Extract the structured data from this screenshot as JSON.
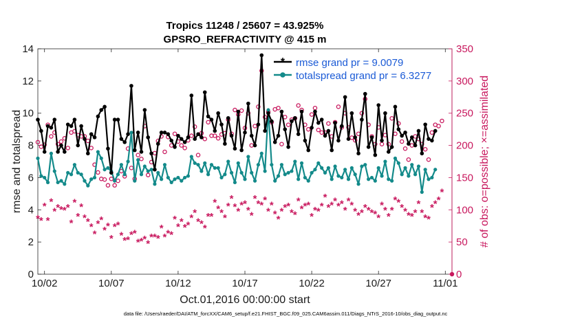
{
  "chart_data": {
    "type": "line",
    "title_line1": "Tropics 11248 / 25607 = 43.925%",
    "title_line2": "GPSRO_REFRACTIVITY @ 415 m",
    "xlabel": "Oct.01,2016 00:00:00 start",
    "ylabel_left": "rmse and totalspread",
    "ylabel_right": "# of obs: o=possible; ×=assimilated",
    "footer": "data file: /Users/raeder/DAI/ATM_forcXX/CAM6_setup/f.e21.FHIST_BGC.f09_025.CAM6assim.011/Diags_NTrS_2016-10/obs_diag_output.nc",
    "x_range_days": [
      0.5,
      31.5
    ],
    "x_tick_positions": [
      1,
      6,
      11,
      16,
      21,
      26,
      31
    ],
    "x_tick_labels": [
      "10/02",
      "10/07",
      "10/12",
      "10/17",
      "10/22",
      "10/27",
      "11/01"
    ],
    "ylim_left": [
      0,
      14
    ],
    "left_ticks": [
      "0",
      "2",
      "4",
      "6",
      "8",
      "10",
      "12",
      "14"
    ],
    "ylim_right": [
      0,
      350
    ],
    "right_ticks": [
      "0",
      "50",
      "100",
      "150",
      "200",
      "250",
      "300",
      "350"
    ],
    "colors": {
      "rmse": "#000000",
      "spread": "#138a8a",
      "obs": "#c8175d",
      "legend_text": "#1a5ad6"
    },
    "series": [
      {
        "name": "rmse grand pr = 9.0079",
        "axis": "left",
        "step_days": 0.25,
        "start_day": 0.5,
        "values": [
          9.6,
          8.9,
          7.6,
          9.2,
          9.1,
          9.6,
          7.6,
          8.0,
          7.6,
          9.3,
          9.2,
          9.6,
          8.0,
          9.2,
          8.4,
          7.5,
          8.7,
          8.5,
          9.8,
          10.2,
          10.4,
          7.8,
          6.3,
          9.6,
          9.6,
          8.4,
          8.2,
          8.7,
          11.7,
          7.7,
          8.8,
          7.6,
          10.2,
          8.5,
          7.5,
          6.5,
          8.1,
          8.8,
          8.8,
          8.7,
          8.3,
          7.9,
          8.6,
          8.4,
          8.2,
          8.5,
          11.1,
          8.4,
          8.7,
          8.5,
          11.3,
          9.8,
          9.6,
          8.9,
          10.0,
          9.3,
          8.1,
          9.7,
          8.6,
          7.8,
          10.1,
          7.7,
          8.8,
          10.6,
          8.6,
          8.0,
          9.3,
          13.6,
          8.9,
          10.0,
          9.5,
          8.2,
          8.6,
          10.1,
          9.0,
          7.9,
          9.5,
          9.7,
          8.7,
          10.1,
          8.3,
          7.7,
          9.1,
          10.1,
          9.4,
          9.6,
          8.6,
          8.9,
          7.7,
          9.4,
          8.3,
          9.2,
          11.0,
          8.4,
          10.0,
          8.5,
          7.5,
          9.6,
          11.2,
          7.9,
          8.5,
          7.4,
          10.5,
          8.3,
          10.0,
          7.6,
          7.9,
          10.4,
          9.0,
          8.6,
          8.8,
          8.1,
          8.5,
          8.0,
          8.9,
          7.5,
          9.3,
          8.4,
          8.3,
          8.9
        ]
      },
      {
        "name": "totalspread grand pr = 6.3277",
        "axis": "left",
        "step_days": 0.25,
        "start_day": 0.5,
        "values": [
          7.2,
          6.1,
          6.0,
          5.7,
          7.5,
          6.4,
          5.7,
          5.8,
          5.6,
          6.3,
          6.2,
          6.8,
          6.3,
          6.2,
          5.8,
          5.5,
          5.9,
          6.0,
          7.6,
          7.2,
          6.5,
          6.6,
          6.4,
          5.8,
          6.2,
          6.8,
          6.2,
          7.0,
          8.8,
          5.8,
          7.1,
          6.2,
          6.7,
          6.4,
          6.5,
          5.6,
          6.3,
          5.9,
          6.8,
          6.0,
          5.7,
          5.9,
          6.0,
          5.8,
          6.0,
          6.1,
          7.3,
          6.9,
          6.8,
          6.4,
          6.9,
          6.2,
          6.8,
          6.6,
          6.6,
          6.0,
          6.2,
          7.0,
          6.3,
          5.7,
          6.9,
          6.3,
          5.9,
          7.3,
          6.3,
          5.8,
          6.8,
          7.5,
          6.4,
          10.2,
          6.8,
          5.8,
          6.1,
          6.8,
          6.2,
          6.3,
          6.4,
          7.0,
          5.9,
          6.9,
          6.0,
          5.8,
          6.3,
          6.5,
          6.9,
          6.6,
          6.3,
          6.6,
          5.9,
          6.7,
          6.1,
          6.0,
          6.5,
          5.9,
          6.6,
          6.2,
          5.6,
          6.7,
          6.8,
          5.9,
          6.0,
          5.8,
          6.6,
          6.1,
          7.0,
          5.9,
          5.8,
          7.2,
          6.9,
          6.2,
          6.6,
          6.1,
          6.8,
          6.2,
          6.7,
          5.1,
          6.5,
          5.9,
          6.0,
          6.5
        ]
      },
      {
        "name": "possible",
        "axis": "right",
        "step_days": 0.25,
        "start_day": 0.5,
        "values": [
          205,
          198,
          201,
          232,
          214,
          220,
          202,
          206,
          211,
          196,
          220,
          222,
          216,
          214,
          214,
          207,
          196,
          170,
          158,
          148,
          147,
          138,
          148,
          138,
          145,
          160,
          152,
          195,
          165,
          148,
          185,
          179,
          230,
          154,
          174,
          188,
          207,
          214,
          190,
          213,
          200,
          218,
          206,
          200,
          196,
          208,
          215,
          229,
          185,
          219,
          210,
          236,
          215,
          215,
          211,
          217,
          219,
          240,
          218,
          255,
          248,
          254,
          227,
          250,
          200,
          230,
          260,
          316,
          244,
          252,
          236,
          256,
          258,
          202,
          244,
          232,
          240,
          242,
          262,
          255,
          232,
          225,
          248,
          258,
          224,
          220,
          220,
          234,
          214,
          236,
          260,
          228,
          250,
          228,
          212,
          208,
          218,
          250,
          272,
          232,
          214,
          202,
          228,
          202,
          216,
          202,
          242,
          218,
          234,
          206,
          195,
          178,
          200,
          214,
          210,
          202,
          194,
          178,
          220,
          232,
          230,
          238
        ]
      },
      {
        "name": "assimilated",
        "axis": "right",
        "step_days": 0.25,
        "start_day": 0.5,
        "values": [
          87,
          84,
          106,
          84,
          113,
          98,
          104,
          101,
          100,
          104,
          80,
          112,
          90,
          105,
          88,
          82,
          74,
          63,
          79,
          85,
          69,
          75,
          56,
          74,
          77,
          61,
          53,
          54,
          62,
          64,
          50,
          52,
          55,
          48,
          58,
          58,
          56,
          72,
          58,
          64,
          62,
          86,
          74,
          82,
          73,
          77,
          88,
          96,
          82,
          79,
          72,
          90,
          90,
          112,
          102,
          96,
          88,
          106,
          118,
          105,
          98,
          108,
          110,
          100,
          92,
          118,
          110,
          108,
          116,
          98,
          108,
          94,
          86,
          98,
          104,
          106,
          96,
          93,
          114,
          102,
          106,
          108,
          90,
          100,
          98,
          106,
          120,
          104,
          108,
          114,
          106,
          110,
          100,
          114,
          108,
          98,
          92,
          96,
          104,
          100,
          96,
          94,
          88,
          108,
          100,
          90,
          100,
          116,
          112,
          104,
          98,
          92,
          90,
          96,
          110,
          96,
          88,
          86,
          104,
          110,
          116,
          128
        ]
      }
    ]
  }
}
